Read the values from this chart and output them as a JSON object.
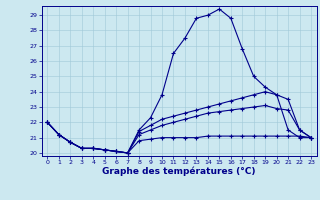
{
  "title": "Graphe des températures (°C)",
  "background_color": "#cce8f0",
  "line_color": "#00008b",
  "x_values": [
    0,
    1,
    2,
    3,
    4,
    5,
    6,
    7,
    8,
    9,
    10,
    11,
    12,
    13,
    14,
    15,
    16,
    17,
    18,
    19,
    20,
    21,
    22,
    23
  ],
  "line1": [
    22.0,
    21.2,
    20.7,
    20.3,
    20.3,
    20.2,
    20.1,
    20.0,
    21.5,
    22.3,
    23.8,
    26.5,
    27.5,
    28.8,
    29.0,
    29.4,
    28.8,
    26.8,
    25.0,
    24.3,
    23.8,
    21.5,
    21.0,
    21.0
  ],
  "line2": [
    22.0,
    21.2,
    20.7,
    20.3,
    20.3,
    20.2,
    20.1,
    20.0,
    21.4,
    21.8,
    22.2,
    22.4,
    22.6,
    22.8,
    23.0,
    23.2,
    23.4,
    23.6,
    23.8,
    24.0,
    23.8,
    23.5,
    21.5,
    21.0
  ],
  "line3": [
    22.0,
    21.2,
    20.7,
    20.3,
    20.3,
    20.2,
    20.1,
    20.0,
    20.8,
    20.9,
    21.0,
    21.0,
    21.0,
    21.0,
    21.1,
    21.1,
    21.1,
    21.1,
    21.1,
    21.1,
    21.1,
    21.1,
    21.1,
    21.0
  ],
  "line4": [
    22.0,
    21.2,
    20.7,
    20.3,
    20.3,
    20.2,
    20.1,
    20.0,
    21.2,
    21.5,
    21.8,
    22.0,
    22.2,
    22.4,
    22.6,
    22.7,
    22.8,
    22.9,
    23.0,
    23.1,
    22.9,
    22.8,
    21.5,
    21.0
  ],
  "ylim": [
    19.8,
    29.6
  ],
  "yticks": [
    20,
    21,
    22,
    23,
    24,
    25,
    26,
    27,
    28,
    29
  ],
  "xlim": [
    -0.5,
    23.5
  ],
  "figsize": [
    3.2,
    2.0
  ],
  "dpi": 100
}
